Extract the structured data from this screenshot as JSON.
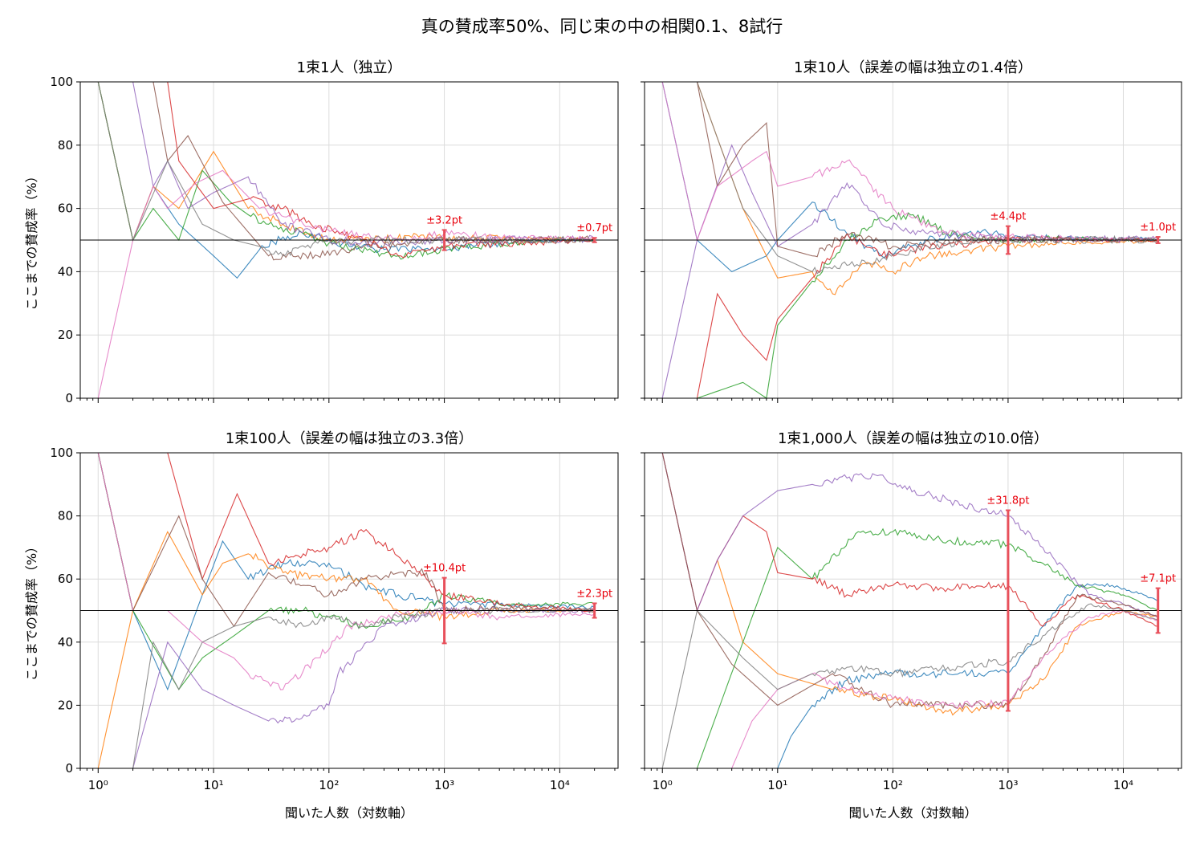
{
  "title": "真の賛成率50%、同じ束の中の相関0.1、8試行",
  "colors": [
    "#1f77b4",
    "#ff7f0e",
    "#2ca02c",
    "#d62728",
    "#9467bd",
    "#8c564b",
    "#e377c2",
    "#7f7f7f"
  ],
  "chart_data": [
    {
      "type": "line",
      "title": "1束1人（独立）",
      "xlabel": "",
      "ylabel": "ここまでの賛成率（%）",
      "xscale": "log",
      "xlim": [
        0.7,
        32000
      ],
      "ylim": [
        0,
        100
      ],
      "yticks": [
        "0",
        "20",
        "40",
        "60",
        "80",
        "100"
      ],
      "grid": true,
      "reference_y": 50,
      "annotations": [
        {
          "x": 1000,
          "y": 50,
          "half_width": 3.2,
          "label": "±3.2pt"
        },
        {
          "x": 20000,
          "y": 50,
          "half_width": 0.7,
          "label": "±0.7pt"
        }
      ],
      "series": [
        {
          "x": [
            1,
            2,
            3,
            5,
            10,
            16,
            25,
            40,
            70,
            150,
            300,
            1000,
            3000,
            20000
          ],
          "values": [
            100,
            50,
            67,
            55,
            45,
            38,
            47,
            51,
            52,
            48,
            47,
            47,
            49,
            50.3
          ]
        },
        {
          "x": [
            1,
            2,
            3,
            5,
            10,
            20,
            40,
            100,
            200,
            600,
            1000,
            3000,
            20000
          ],
          "values": [
            100,
            50,
            67,
            60,
            78,
            60,
            55,
            50,
            50,
            51,
            50.5,
            50.5,
            50.2
          ]
        },
        {
          "x": [
            1,
            2,
            3,
            5,
            8,
            14,
            20,
            30,
            60,
            100,
            400,
            1000,
            5000,
            20000
          ],
          "values": [
            100,
            50,
            60,
            50,
            72,
            62,
            58,
            55,
            52,
            49,
            45,
            47,
            49.5,
            50.1
          ]
        },
        {
          "x": [
            1,
            2,
            3,
            4,
            5,
            10,
            20,
            40,
            70,
            200,
            400,
            1000,
            20000
          ],
          "values": [
            100,
            100,
            100,
            100,
            75,
            60,
            63,
            60,
            55,
            50,
            45,
            48,
            50.3
          ]
        },
        {
          "x": [
            1,
            2,
            3,
            4,
            6,
            10,
            20,
            40,
            100,
            300,
            1000,
            20000
          ],
          "values": [
            100,
            100,
            67,
            75,
            60,
            65,
            70,
            55,
            50,
            49,
            50,
            50.4
          ]
        },
        {
          "x": [
            1,
            2,
            3,
            4,
            6,
            12,
            30,
            80,
            200,
            500,
            1000,
            20000
          ],
          "values": [
            100,
            100,
            100,
            75,
            83,
            62,
            45,
            45,
            48,
            49,
            50,
            50.2
          ]
        },
        {
          "x": [
            1,
            2,
            3,
            4,
            7,
            12,
            25,
            60,
            150,
            500,
            1000,
            3000,
            20000
          ],
          "values": [
            0,
            50,
            67,
            60,
            68,
            72,
            60,
            55,
            52,
            50,
            52,
            51,
            50.5
          ]
        },
        {
          "x": [
            1,
            2,
            4,
            8,
            15,
            25,
            40,
            80,
            200,
            1000,
            20000
          ],
          "values": [
            100,
            50,
            75,
            55,
            50,
            48,
            45,
            49,
            50,
            50,
            50.1
          ]
        }
      ]
    },
    {
      "type": "line",
      "title": "1束10人（誤差の幅は独立の1.4倍）",
      "xlabel": "",
      "ylabel": "",
      "xscale": "log",
      "xlim": [
        0.7,
        32000
      ],
      "ylim": [
        0,
        100
      ],
      "yticks": [
        "0",
        "20",
        "40",
        "60",
        "80",
        "100"
      ],
      "grid": true,
      "reference_y": 50,
      "annotations": [
        {
          "x": 1000,
          "y": 50,
          "half_width": 4.4,
          "label": "±4.4pt"
        },
        {
          "x": 20000,
          "y": 50,
          "half_width": 1.0,
          "label": "±1.0pt"
        }
      ],
      "series": [
        {
          "x": [
            1,
            2,
            4,
            8,
            10,
            20,
            40,
            80,
            200,
            600,
            1000,
            3000,
            20000
          ],
          "values": [
            100,
            50,
            40,
            45,
            50,
            62,
            52,
            45,
            50,
            53,
            51,
            50.5,
            50.3
          ]
        },
        {
          "x": [
            1,
            2,
            5,
            8,
            10,
            20,
            30,
            60,
            100,
            200,
            500,
            1000,
            3000,
            20000
          ],
          "values": [
            100,
            100,
            60,
            45,
            38,
            40,
            33,
            43,
            40,
            45,
            47,
            48,
            49,
            49.8
          ]
        },
        {
          "x": [
            1,
            2,
            5,
            8,
            10,
            20,
            40,
            80,
            150,
            300,
            1000,
            3000,
            20000
          ],
          "values": [
            0,
            0,
            5,
            0,
            23,
            37,
            50,
            57,
            58,
            52,
            50,
            50.4,
            50.2
          ]
        },
        {
          "x": [
            2,
            3,
            5,
            8,
            10,
            20,
            40,
            80,
            200,
            500,
            1000,
            3000,
            20000
          ],
          "values": [
            0,
            33,
            20,
            12,
            25,
            38,
            52,
            45,
            48,
            49,
            50,
            50.2,
            50.0
          ]
        },
        {
          "x": [
            1,
            2,
            4,
            6,
            10,
            20,
            40,
            80,
            200,
            600,
            1000,
            20000
          ],
          "values": [
            0,
            50,
            80,
            65,
            48,
            55,
            68,
            55,
            52,
            51,
            50.5,
            50.2
          ]
        },
        {
          "x": [
            1,
            2,
            3,
            5,
            8,
            10,
            20,
            40,
            100,
            300,
            1000,
            3000,
            20000
          ],
          "values": [
            100,
            100,
            67,
            80,
            87,
            48,
            45,
            52,
            48,
            50,
            50,
            50.2,
            49.9
          ]
        },
        {
          "x": [
            1,
            2,
            3,
            6,
            8,
            10,
            20,
            40,
            100,
            300,
            1000,
            3000,
            20000
          ],
          "values": [
            100,
            50,
            67,
            75,
            78,
            67,
            70,
            75,
            60,
            52,
            51,
            50.5,
            50.3
          ]
        },
        {
          "x": [
            1,
            2,
            5,
            8,
            10,
            20,
            40,
            80,
            200,
            500,
            1000,
            20000
          ],
          "values": [
            100,
            100,
            60,
            50,
            45,
            40,
            42,
            44,
            48,
            50,
            50,
            50.1
          ]
        }
      ]
    },
    {
      "type": "line",
      "title": "1束100人（誤差の幅は独立の3.3倍）",
      "xlabel": "聞いた人数（対数軸）",
      "ylabel": "ここまでの賛成率（%）",
      "xscale": "log",
      "xlim": [
        0.7,
        32000
      ],
      "xticks": [
        "10⁰",
        "10¹",
        "10²",
        "10³",
        "10⁴"
      ],
      "ylim": [
        0,
        100
      ],
      "yticks": [
        "0",
        "20",
        "40",
        "60",
        "80",
        "100"
      ],
      "grid": true,
      "reference_y": 50,
      "annotations": [
        {
          "x": 1000,
          "y": 50,
          "half_width": 10.4,
          "label": "±10.4pt"
        },
        {
          "x": 20000,
          "y": 50,
          "half_width": 2.3,
          "label": "±2.3pt"
        }
      ],
      "series": [
        {
          "x": [
            1,
            2,
            4,
            8,
            12,
            20,
            40,
            100,
            200,
            400,
            1000,
            3000,
            20000
          ],
          "values": [
            100,
            50,
            25,
            55,
            72,
            60,
            65,
            65,
            58,
            55,
            52,
            52,
            51
          ]
        },
        {
          "x": [
            1,
            2,
            4,
            8,
            12,
            20,
            40,
            100,
            200,
            400,
            1000,
            3000,
            20000
          ],
          "values": [
            0,
            50,
            75,
            55,
            65,
            68,
            62,
            60,
            60,
            50,
            48,
            50,
            50
          ]
        },
        {
          "x": [
            1,
            2,
            5,
            8,
            15,
            30,
            60,
            100,
            200,
            500,
            1000,
            3000,
            20000
          ],
          "values": [
            100,
            50,
            25,
            35,
            42,
            50,
            50,
            48,
            45,
            48,
            55,
            52,
            52
          ]
        },
        {
          "x": [
            1,
            3,
            4,
            8,
            16,
            30,
            60,
            100,
            200,
            500,
            700,
            1000,
            3000,
            20000
          ],
          "values": [
            100,
            100,
            100,
            60,
            87,
            65,
            68,
            70,
            75,
            65,
            60,
            55,
            52,
            50
          ]
        },
        {
          "x": [
            1,
            2,
            4,
            8,
            15,
            30,
            50,
            100,
            120,
            300,
            1000,
            3000,
            20000
          ],
          "values": [
            0,
            0,
            40,
            25,
            20,
            15,
            15,
            20,
            30,
            45,
            50,
            50,
            50
          ]
        },
        {
          "x": [
            1,
            2,
            5,
            8,
            15,
            30,
            60,
            100,
            200,
            400,
            700,
            1000,
            3000,
            20000
          ],
          "values": [
            100,
            50,
            80,
            60,
            45,
            62,
            58,
            55,
            60,
            62,
            62,
            50,
            51,
            50
          ]
        },
        {
          "x": [
            1,
            2,
            4,
            8,
            15,
            20,
            40,
            80,
            150,
            300,
            1000,
            3000,
            20000
          ],
          "values": [
            100,
            50,
            50,
            40,
            35,
            30,
            25,
            35,
            45,
            48,
            50,
            48,
            49
          ]
        },
        {
          "x": [
            2,
            3,
            5,
            8,
            15,
            30,
            60,
            100,
            200,
            400,
            1000,
            3000,
            20000
          ],
          "values": [
            0,
            40,
            25,
            40,
            45,
            48,
            45,
            48,
            45,
            48,
            50,
            50,
            50
          ]
        }
      ]
    },
    {
      "type": "line",
      "title": "1束1,000人（誤差の幅は独立の10.0倍）",
      "xlabel": "聞いた人数（対数軸）",
      "ylabel": "",
      "xscale": "log",
      "xlim": [
        0.7,
        32000
      ],
      "xticks": [
        "10⁰",
        "10¹",
        "10²",
        "10³",
        "10⁴"
      ],
      "ylim": [
        0,
        100
      ],
      "yticks": [
        "0",
        "20",
        "40",
        "60",
        "80",
        "100"
      ],
      "grid": true,
      "reference_y": 50,
      "annotations": [
        {
          "x": 1000,
          "y": 50,
          "half_width": 31.8,
          "label": "±31.8pt"
        },
        {
          "x": 20000,
          "y": 50,
          "half_width": 7.1,
          "label": "±7.1pt"
        }
      ],
      "series": [
        {
          "x": [
            10,
            13,
            20,
            40,
            100,
            300,
            1000,
            2000,
            4000,
            8000,
            15000,
            20000
          ],
          "values": [
            0,
            10,
            20,
            28,
            30,
            30,
            30,
            45,
            58,
            58,
            55,
            53
          ]
        },
        {
          "x": [
            3,
            5,
            10,
            30,
            100,
            300,
            1000,
            2000,
            4000,
            10000,
            20000
          ],
          "values": [
            66,
            40,
            30,
            25,
            22,
            18,
            20,
            28,
            45,
            50,
            48
          ]
        },
        {
          "x": [
            2,
            5,
            10,
            20,
            50,
            100,
            300,
            1000,
            2000,
            4000,
            10000,
            20000
          ],
          "values": [
            0,
            40,
            70,
            60,
            75,
            75,
            72,
            71,
            65,
            58,
            55,
            50
          ]
        },
        {
          "x": [
            1,
            2,
            3,
            5,
            8,
            10,
            20,
            40,
            100,
            300,
            1000,
            2000,
            4000,
            10000,
            20000
          ],
          "values": [
            100,
            50,
            66,
            80,
            75,
            62,
            60,
            55,
            58,
            57,
            58,
            45,
            55,
            50,
            45
          ]
        },
        {
          "x": [
            1,
            2,
            3,
            5,
            10,
            20,
            40,
            70,
            100,
            300,
            1000,
            2000,
            5000,
            10000,
            20000
          ],
          "values": [
            100,
            50,
            66,
            80,
            88,
            90,
            92,
            93,
            90,
            85,
            80,
            70,
            55,
            52,
            48
          ]
        },
        {
          "x": [
            1,
            2,
            4,
            10,
            30,
            100,
            300,
            1000,
            2000,
            4000,
            10000,
            20000
          ],
          "values": [
            100,
            50,
            33,
            20,
            30,
            20,
            20,
            20,
            35,
            55,
            52,
            48
          ]
        },
        {
          "x": [
            4,
            6,
            10,
            20,
            40,
            100,
            300,
            1000,
            2000,
            5000,
            10000,
            20000
          ],
          "values": [
            0,
            15,
            25,
            30,
            25,
            22,
            20,
            21,
            35,
            48,
            50,
            47
          ]
        },
        {
          "x": [
            1,
            2,
            5,
            10,
            20,
            40,
            100,
            300,
            1000,
            2000,
            5000,
            10000,
            20000
          ],
          "values": [
            0,
            50,
            35,
            25,
            30,
            32,
            30,
            32,
            34,
            42,
            52,
            50,
            47
          ]
        }
      ]
    }
  ]
}
